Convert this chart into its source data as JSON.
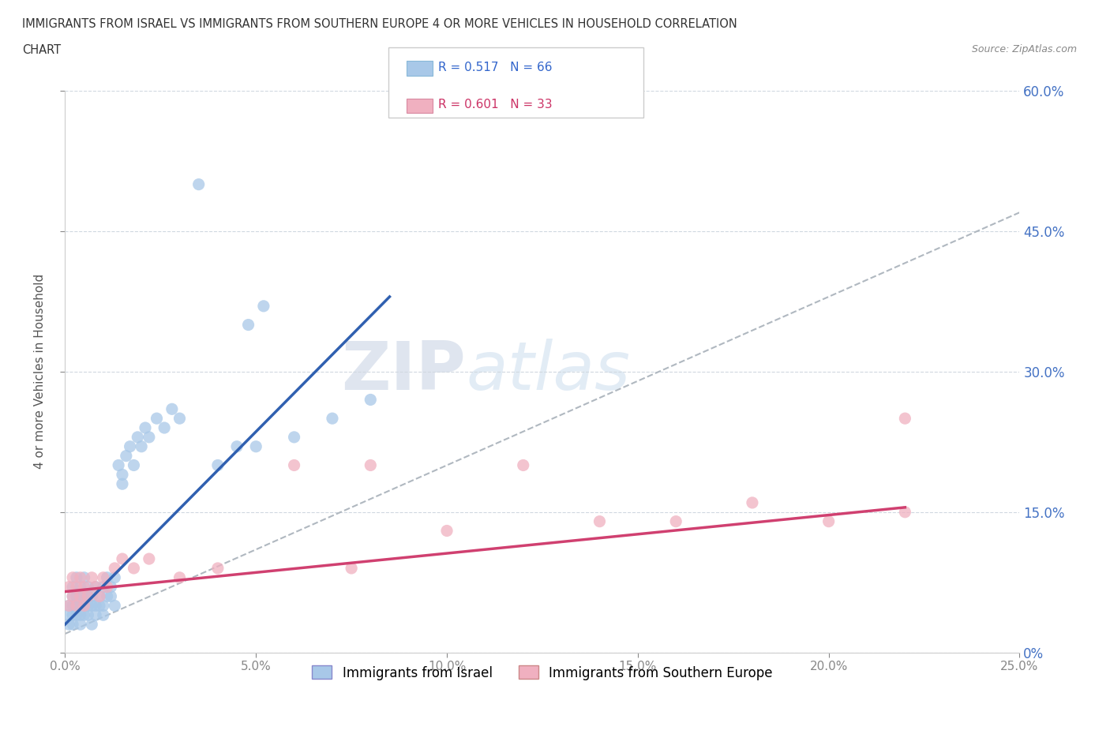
{
  "title_line1": "IMMIGRANTS FROM ISRAEL VS IMMIGRANTS FROM SOUTHERN EUROPE 4 OR MORE VEHICLES IN HOUSEHOLD CORRELATION",
  "title_line2": "CHART",
  "source": "Source: ZipAtlas.com",
  "ylabel": "4 or more Vehicles in Household",
  "xlim": [
    0.0,
    0.25
  ],
  "ylim": [
    0.0,
    0.6
  ],
  "xticks": [
    0.0,
    0.05,
    0.1,
    0.15,
    0.2,
    0.25
  ],
  "xticklabels": [
    "0.0%",
    "5.0%",
    "10.0%",
    "15.0%",
    "20.0%",
    "25.0%"
  ],
  "yticks": [
    0.0,
    0.15,
    0.3,
    0.45,
    0.6
  ],
  "yticklabels": [
    "0%",
    "15.0%",
    "30.0%",
    "45.0%",
    "60.0%"
  ],
  "blue_color": "#a8c8e8",
  "pink_color": "#f0b0c0",
  "blue_line_color": "#3060b0",
  "pink_line_color": "#d04070",
  "gray_line_color": "#b0b8c0",
  "legend_R1": "R = 0.517",
  "legend_N1": "N = 66",
  "legend_R2": "R = 0.601",
  "legend_N2": "N = 33",
  "label1": "Immigrants from Israel",
  "label2": "Immigrants from Southern Europe",
  "watermark_zip": "ZIP",
  "watermark_atlas": "atlas",
  "blue_scatter_x": [
    0.001,
    0.001,
    0.001,
    0.002,
    0.002,
    0.002,
    0.002,
    0.002,
    0.003,
    0.003,
    0.003,
    0.003,
    0.003,
    0.004,
    0.004,
    0.004,
    0.004,
    0.004,
    0.005,
    0.005,
    0.005,
    0.005,
    0.006,
    0.006,
    0.006,
    0.006,
    0.007,
    0.007,
    0.007,
    0.008,
    0.008,
    0.008,
    0.009,
    0.009,
    0.01,
    0.01,
    0.01,
    0.011,
    0.011,
    0.012,
    0.012,
    0.013,
    0.013,
    0.014,
    0.015,
    0.015,
    0.016,
    0.017,
    0.018,
    0.019,
    0.02,
    0.021,
    0.022,
    0.024,
    0.026,
    0.028,
    0.03,
    0.035,
    0.04,
    0.045,
    0.05,
    0.06,
    0.07,
    0.08,
    0.048,
    0.052
  ],
  "blue_scatter_y": [
    0.05,
    0.04,
    0.03,
    0.06,
    0.05,
    0.04,
    0.03,
    0.07,
    0.05,
    0.06,
    0.04,
    0.05,
    0.08,
    0.05,
    0.06,
    0.04,
    0.07,
    0.03,
    0.06,
    0.05,
    0.04,
    0.08,
    0.05,
    0.06,
    0.07,
    0.04,
    0.05,
    0.06,
    0.03,
    0.07,
    0.05,
    0.04,
    0.06,
    0.05,
    0.07,
    0.05,
    0.04,
    0.08,
    0.06,
    0.07,
    0.06,
    0.08,
    0.05,
    0.2,
    0.19,
    0.18,
    0.21,
    0.22,
    0.2,
    0.23,
    0.22,
    0.24,
    0.23,
    0.25,
    0.24,
    0.26,
    0.25,
    0.5,
    0.2,
    0.22,
    0.22,
    0.23,
    0.25,
    0.27,
    0.35,
    0.37
  ],
  "pink_scatter_x": [
    0.001,
    0.001,
    0.002,
    0.002,
    0.003,
    0.003,
    0.004,
    0.004,
    0.005,
    0.005,
    0.006,
    0.007,
    0.008,
    0.009,
    0.01,
    0.011,
    0.013,
    0.015,
    0.018,
    0.022,
    0.03,
    0.04,
    0.06,
    0.075,
    0.08,
    0.1,
    0.12,
    0.14,
    0.16,
    0.18,
    0.2,
    0.22,
    0.22
  ],
  "pink_scatter_y": [
    0.07,
    0.05,
    0.06,
    0.08,
    0.05,
    0.07,
    0.06,
    0.08,
    0.05,
    0.07,
    0.06,
    0.08,
    0.07,
    0.06,
    0.08,
    0.07,
    0.09,
    0.1,
    0.09,
    0.1,
    0.08,
    0.09,
    0.2,
    0.09,
    0.2,
    0.13,
    0.2,
    0.14,
    0.14,
    0.16,
    0.14,
    0.25,
    0.15
  ]
}
